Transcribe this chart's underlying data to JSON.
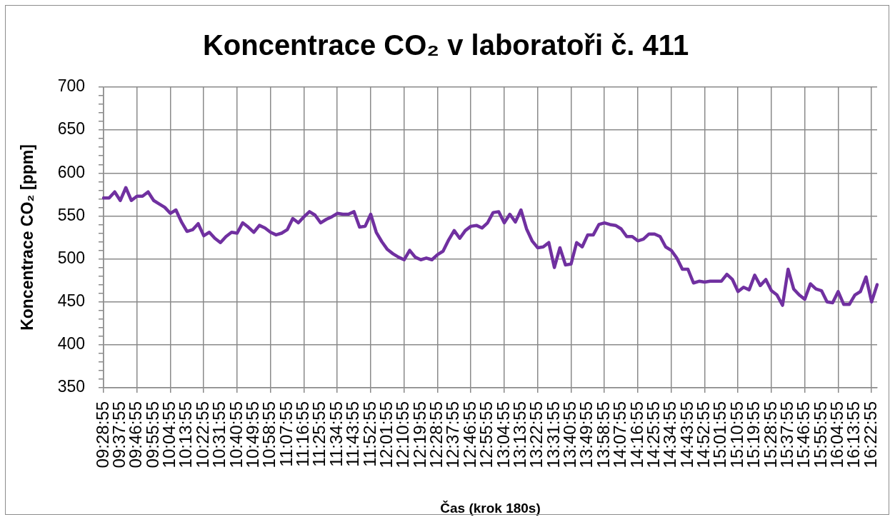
{
  "chart_data": {
    "type": "line",
    "title": "Koncentrace CO₂ v laboratoři č. 411",
    "xlabel": "Čas (krok 180s)",
    "ylabel": "Koncentrace CO₂ [ppm]",
    "categories": [
      "09:28:55",
      null,
      null,
      "09:37:55",
      null,
      null,
      "09:46:55",
      null,
      null,
      "09:55:55",
      null,
      null,
      "10:04:55",
      null,
      null,
      "10:13:55",
      null,
      null,
      "10:22:55",
      null,
      null,
      "10:31:55",
      null,
      null,
      "10:40:55",
      null,
      null,
      "10:49:55",
      null,
      null,
      "10:58:55",
      null,
      null,
      "11:07:55",
      null,
      null,
      "11:16:55",
      null,
      null,
      "11:25:55",
      null,
      null,
      "11:34:55",
      null,
      null,
      "11:43:55",
      null,
      null,
      "11:52:55",
      null,
      null,
      "12:01:55",
      null,
      null,
      "12:10:55",
      null,
      null,
      "12:19:55",
      null,
      null,
      "12:28:55",
      null,
      null,
      "12:37:55",
      null,
      null,
      "12:46:55",
      null,
      null,
      "12:55:55",
      null,
      null,
      "13:04:55",
      null,
      null,
      "13:13:55",
      null,
      null,
      "13:22:55",
      null,
      null,
      "13:31:55",
      null,
      null,
      "13:40:55",
      null,
      null,
      "13:49:55",
      null,
      null,
      "13:58:55",
      null,
      null,
      "14:07:55",
      null,
      null,
      "14:16:55",
      null,
      null,
      "14:25:55",
      null,
      null,
      "14:34:55",
      null,
      null,
      "14:43:55",
      null,
      null,
      "14:52:55",
      null,
      null,
      "15:01:55",
      null,
      null,
      "15:10:55",
      null,
      null,
      "15:19:55",
      null,
      null,
      "15:28:55",
      null,
      null,
      "15:37:55",
      null,
      null,
      "15:46:55",
      null,
      null,
      "15:55:55",
      null,
      null,
      "16:04:55",
      null,
      null,
      "16:13:55",
      null,
      null,
      "16:22:55",
      null
    ],
    "values": [
      571,
      571,
      578,
      568,
      583,
      568,
      573,
      573,
      578,
      568,
      564,
      560,
      553,
      557,
      543,
      532,
      534,
      541,
      527,
      531,
      524,
      519,
      526,
      531,
      530,
      542,
      537,
      531,
      539,
      536,
      531,
      528,
      530,
      534,
      547,
      542,
      549,
      555,
      551,
      542,
      546,
      549,
      553,
      552,
      552,
      555,
      537,
      538,
      552,
      531,
      520,
      511,
      506,
      502,
      499,
      510,
      502,
      499,
      501,
      499,
      505,
      509,
      522,
      533,
      524,
      533,
      538,
      539,
      536,
      542,
      554,
      555,
      542,
      552,
      543,
      557,
      535,
      521,
      513,
      514,
      519,
      490,
      513,
      493,
      494,
      519,
      514,
      528,
      528,
      540,
      542,
      540,
      539,
      535,
      526,
      526,
      521,
      523,
      529,
      529,
      526,
      514,
      510,
      501,
      488,
      488,
      472,
      474,
      473,
      474,
      474,
      474,
      482,
      476,
      462,
      467,
      464,
      481,
      469,
      476,
      463,
      458,
      446,
      488,
      465,
      458,
      453,
      471,
      465,
      463,
      450,
      449,
      462,
      447,
      447,
      458,
      462,
      479,
      450,
      470
    ],
    "color": "#7030a0",
    "ylim": [
      350,
      700
    ],
    "yticks": [
      350,
      {
        "value": 360,
        "label": null
      },
      {
        "value": 370,
        "label": null
      },
      {
        "value": 380,
        "label": null
      },
      {
        "value": 390,
        "label": null
      },
      400,
      {
        "value": 410,
        "label": null
      },
      {
        "value": 420,
        "label": null
      },
      {
        "value": 430,
        "label": null
      },
      {
        "value": 440,
        "label": null
      },
      450,
      {
        "value": 460,
        "label": null
      },
      {
        "value": 470,
        "label": null
      },
      {
        "value": 480,
        "label": null
      },
      {
        "value": 490,
        "label": null
      },
      500,
      {
        "value": 510,
        "label": null
      },
      {
        "value": 520,
        "label": null
      },
      {
        "value": 530,
        "label": null
      },
      {
        "value": 540,
        "label": null
      },
      550,
      {
        "value": 560,
        "label": null
      },
      {
        "value": 570,
        "label": null
      },
      {
        "value": 580,
        "label": null
      },
      {
        "value": 590,
        "label": null
      },
      600,
      {
        "value": 610,
        "label": null
      },
      {
        "value": 620,
        "label": null
      },
      {
        "value": 630,
        "label": null
      },
      {
        "value": 640,
        "label": null
      },
      650,
      {
        "value": 660,
        "label": null
      },
      {
        "value": 670,
        "label": null
      },
      {
        "value": 680,
        "label": null
      },
      {
        "value": 690,
        "label": null
      },
      700
    ],
    "grid": true
  }
}
